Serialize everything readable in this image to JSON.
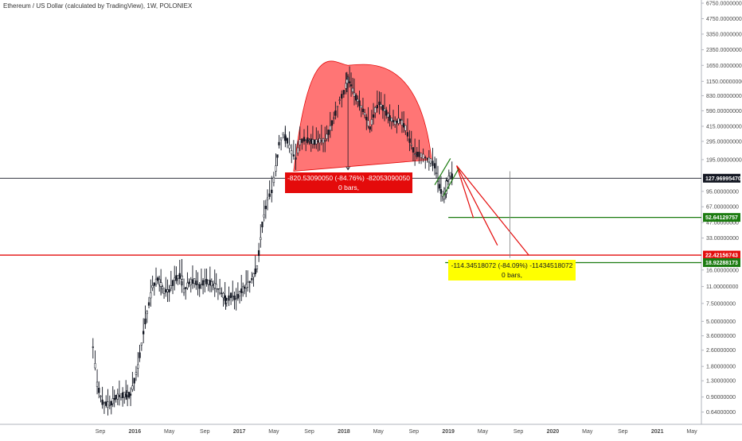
{
  "chart_data": {
    "type": "candlestick",
    "title": "Ethereum / US Dollar (calculated by TradingView), 1W, POLONIEX",
    "y_scale": "log",
    "ylim": [
      0.55,
      7000
    ],
    "x_ticks": [
      "Sep",
      "2016",
      "May",
      "Sep",
      "2017",
      "May",
      "Sep",
      "2018",
      "May",
      "Sep",
      "2019",
      "May",
      "Sep",
      "2020",
      "May",
      "Sep",
      "2021",
      "May"
    ],
    "x_tick_values": [
      2015.67,
      2016.0,
      2016.33,
      2016.67,
      2017.0,
      2017.33,
      2017.67,
      2018.0,
      2018.33,
      2018.67,
      2019.0,
      2019.33,
      2019.67,
      2020.0,
      2020.33,
      2020.67,
      2021.0,
      2021.33
    ],
    "y_ticks": [
      "6750.00000000",
      "4750.00000000",
      "3350.00000000",
      "2350.00000000",
      "1650.00000000",
      "1150.00000000",
      "830.00000000",
      "590.00000000",
      "415.00000000",
      "295.00000000",
      "195.00000000",
      "95.00000000",
      "67.00000000",
      "47.00000000",
      "33.00000000",
      "16.00000000",
      "11.00000000",
      "7.50000000",
      "5.00000000",
      "3.60000000",
      "2.60000000",
      "1.80000000",
      "1.30000000",
      "0.90000000",
      "0.64000000"
    ],
    "y_tick_values": [
      6750,
      4750,
      3350,
      2350,
      1650,
      1150,
      830,
      590,
      415,
      295,
      195,
      95,
      67,
      47,
      33,
      16,
      11,
      7.5,
      5,
      3.6,
      2.6,
      1.8,
      1.3,
      0.9,
      0.64
    ],
    "price_path": [
      [
        2015.6,
        2.8
      ],
      [
        2015.64,
        1.2
      ],
      [
        2015.69,
        0.8
      ],
      [
        2015.76,
        0.75
      ],
      [
        2015.82,
        0.9
      ],
      [
        2015.9,
        0.95
      ],
      [
        2015.96,
        0.95
      ],
      [
        2016.03,
        1.8
      ],
      [
        2016.1,
        5
      ],
      [
        2016.17,
        11
      ],
      [
        2016.22,
        13
      ],
      [
        2016.28,
        10
      ],
      [
        2016.33,
        10
      ],
      [
        2016.38,
        13
      ],
      [
        2016.43,
        14
      ],
      [
        2016.47,
        10
      ],
      [
        2016.52,
        12
      ],
      [
        2016.57,
        12.5
      ],
      [
        2016.62,
        11
      ],
      [
        2016.67,
        12.5
      ],
      [
        2016.72,
        12
      ],
      [
        2016.78,
        11
      ],
      [
        2016.83,
        9.5
      ],
      [
        2016.88,
        8
      ],
      [
        2016.92,
        9
      ],
      [
        2016.97,
        8.3
      ],
      [
        2017.02,
        10
      ],
      [
        2017.08,
        11.5
      ],
      [
        2017.12,
        13
      ],
      [
        2017.17,
        17
      ],
      [
        2017.22,
        45
      ],
      [
        2017.27,
        80
      ],
      [
        2017.31,
        95
      ],
      [
        2017.35,
        160
      ],
      [
        2017.38,
        280
      ],
      [
        2017.42,
        350
      ],
      [
        2017.46,
        300
      ],
      [
        2017.5,
        230
      ],
      [
        2017.54,
        200
      ],
      [
        2017.58,
        290
      ],
      [
        2017.62,
        310
      ],
      [
        2017.67,
        300
      ],
      [
        2017.72,
        290
      ],
      [
        2017.77,
        300
      ],
      [
        2017.82,
        300
      ],
      [
        2017.87,
        400
      ],
      [
        2017.92,
        560
      ],
      [
        2017.96,
        750
      ],
      [
        2018.0,
        900
      ],
      [
        2018.04,
        1200
      ],
      [
        2018.07,
        1050
      ],
      [
        2018.1,
        850
      ],
      [
        2018.15,
        700
      ],
      [
        2018.2,
        550
      ],
      [
        2018.25,
        400
      ],
      [
        2018.3,
        600
      ],
      [
        2018.34,
        700
      ],
      [
        2018.39,
        600
      ],
      [
        2018.44,
        500
      ],
      [
        2018.49,
        450
      ],
      [
        2018.54,
        480
      ],
      [
        2018.59,
        400
      ],
      [
        2018.63,
        300
      ],
      [
        2018.68,
        220
      ],
      [
        2018.72,
        220
      ],
      [
        2018.76,
        210
      ],
      [
        2018.8,
        200
      ],
      [
        2018.83,
        190
      ],
      [
        2018.87,
        170
      ],
      [
        2018.9,
        120
      ],
      [
        2018.93,
        95
      ],
      [
        2018.96,
        85
      ],
      [
        2018.99,
        120
      ],
      [
        2019.02,
        140
      ],
      [
        2019.05,
        127.97
      ]
    ],
    "candles": [
      {
        "t": 2015.92,
        "o": 0.95,
        "h": 1.05,
        "l": 0.85,
        "c": 0.9
      },
      {
        "t": 2016.25,
        "o": 11,
        "h": 13,
        "l": 9,
        "c": 12
      },
      {
        "t": 2016.45,
        "o": 13,
        "h": 20.5,
        "l": 11,
        "c": 14
      },
      {
        "t": 2016.87,
        "o": 8.5,
        "h": 9,
        "l": 6.5,
        "c": 8
      },
      {
        "t": 2017.44,
        "o": 330,
        "h": 420,
        "l": 280,
        "c": 300
      },
      {
        "t": 2018.03,
        "o": 1100,
        "h": 1420,
        "l": 900,
        "c": 1200
      },
      {
        "t": 2018.98,
        "o": 90,
        "h": 130,
        "l": 82,
        "c": 120
      }
    ],
    "price_lines": [
      {
        "value": 127.9699547,
        "label": "127.96995470",
        "color": "#131722",
        "label_bg": "#131722"
      },
      {
        "value": 52.64129757,
        "label": "52.64129757",
        "color": "#1b7b10",
        "label_bg": "#1b7b10"
      },
      {
        "value": 22.42156743,
        "label": "22.42156743",
        "color": "#e40b0b",
        "label_bg": "#e40b0b"
      },
      {
        "value": 18.92288173,
        "label": "18.92288173",
        "color": "#1b7b10",
        "label_bg": "#1b7b10"
      }
    ],
    "dome_shape": {
      "x_start": 2017.52,
      "x_end": 2018.84,
      "peak_x": 2018.04,
      "peak_value": 1650,
      "base_left": 150,
      "base_right": 195,
      "fill": "#ff5252"
    },
    "measure_boxes": [
      {
        "text1": "-820.53090050 (-84.76%) -82053090050",
        "text2": "0 bars,",
        "bg": "#e40b0b",
        "x_center": 2018.03,
        "x_from": 2018.04,
        "y_from": 1300,
        "y_to": 155
      },
      {
        "text1": "-114.34518072 (-84.09%) -11434518072",
        "text2": "0 bars,",
        "bg": "#ffff00",
        "x_center": 2019.58,
        "x_from": 2019.59,
        "y_from": 150,
        "y_to": 21
      }
    ],
    "trend_lines": [
      {
        "color": "#e40b0b",
        "points": [
          [
            2019.08,
            170
          ],
          [
            2019.24,
            52
          ]
        ]
      },
      {
        "color": "#e40b0b",
        "points": [
          [
            2019.08,
            170
          ],
          [
            2019.47,
            28
          ]
        ]
      },
      {
        "color": "#e40b0b",
        "points": [
          [
            2019.08,
            170
          ],
          [
            2019.77,
            22.4
          ]
        ]
      },
      {
        "color": "#1b7b10",
        "points": [
          [
            2018.87,
            110
          ],
          [
            2019.02,
            200
          ]
        ]
      },
      {
        "color": "#1b7b10",
        "points": [
          [
            2018.95,
            85
          ],
          [
            2019.1,
            160
          ]
        ]
      }
    ],
    "horizontal_segments": [
      {
        "value": 52.64129757,
        "x_from": 2019.0,
        "color": "#1b7b10"
      },
      {
        "value": 18.92288173,
        "x_from": 2018.97,
        "color": "#1b7b10"
      }
    ]
  }
}
